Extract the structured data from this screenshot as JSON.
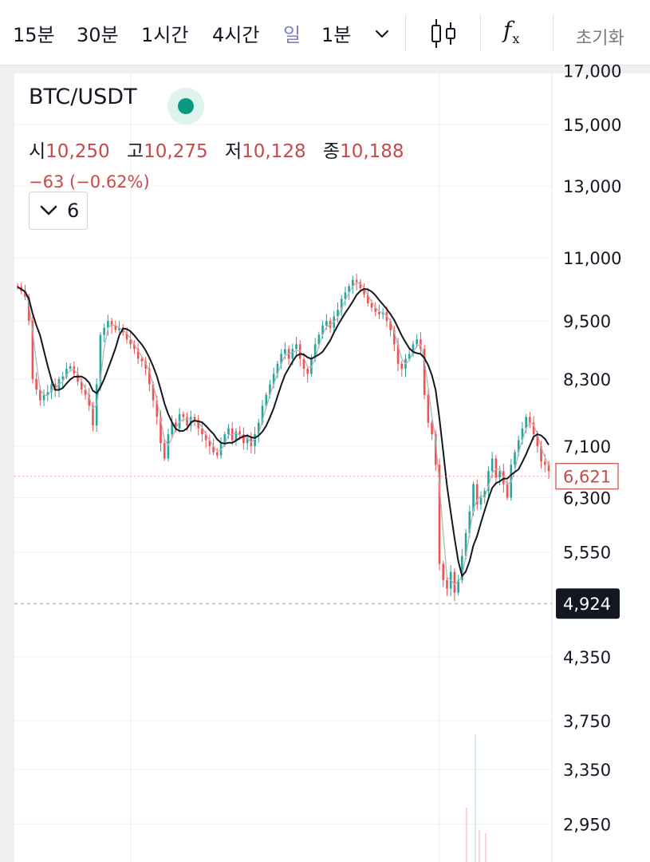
{
  "toolbar": {
    "timeframes": [
      "15분",
      "30분",
      "1시간",
      "4시간",
      "일",
      "1분"
    ],
    "active_timeframe": "일",
    "reset_label": "초기화",
    "fx_label": "f",
    "fx_sub": "x"
  },
  "legend": {
    "symbol": "BTC/USDT",
    "open_key": "시",
    "open": "10,250",
    "high_key": "고",
    "high": "10,275",
    "low_key": "저",
    "low": "10,128",
    "close_key": "종",
    "close": "10,188",
    "change": "−63 (−0.62%)",
    "indicator_count": "6"
  },
  "colors": {
    "up": "#26a69a",
    "down": "#ef5350",
    "active_tab": "#7d7fc9",
    "text_red": "#c74a4a",
    "status": "#089981",
    "ma_long": "#131722",
    "ma_short": "#b2b5be"
  },
  "chart_data": {
    "type": "candlestick",
    "y_scale": "log",
    "y_ticks": [
      "17,000",
      "15,000",
      "13,000",
      "11,000",
      "9,500",
      "8,300",
      "7,100",
      "6,300",
      "5,550",
      "4,350",
      "3,750",
      "3,350",
      "2,950"
    ],
    "last_price_label": "6,621",
    "crosshair_label": "4,924",
    "close_series": [
      10280,
      10180,
      10050,
      9500,
      8300,
      8100,
      7900,
      8000,
      8050,
      8200,
      8100,
      8300,
      8350,
      8500,
      8550,
      8400,
      8250,
      8100,
      8000,
      7800,
      7450,
      8200,
      9200,
      9350,
      9500,
      9400,
      9300,
      9350,
      9250,
      9100,
      9000,
      8900,
      8700,
      8650,
      8500,
      8200,
      7900,
      7600,
      7150,
      6900,
      7300,
      7500,
      7400,
      7650,
      7600,
      7450,
      7600,
      7550,
      7400,
      7300,
      7200,
      7100,
      7000,
      6950,
      7150,
      7300,
      7400,
      7200,
      7350,
      7300,
      7150,
      7250,
      7100,
      7300,
      7500,
      7800,
      8000,
      8200,
      8400,
      8600,
      8800,
      8900,
      8700,
      8900,
      9000,
      8700,
      8500,
      8400,
      8700,
      9000,
      9200,
      9400,
      9500,
      9350,
      9600,
      9750,
      10000,
      10150,
      10300,
      10450,
      10400,
      10250,
      10100,
      9900,
      9800,
      9700,
      9650,
      9700,
      9500,
      9300,
      9000,
      8600,
      8500,
      8700,
      8800,
      9000,
      9100,
      8900,
      8000,
      7500,
      7300,
      6800,
      5400,
      5200,
      5100,
      5300,
      5050,
      5200,
      5500,
      5800,
      6100,
      6500,
      6200,
      6300,
      6400,
      6700,
      6900,
      6600,
      6700,
      6500,
      6300,
      6800,
      7000,
      7200,
      7400,
      7600,
      7500,
      7300,
      7100,
      6850,
      6800,
      6700
    ]
  }
}
